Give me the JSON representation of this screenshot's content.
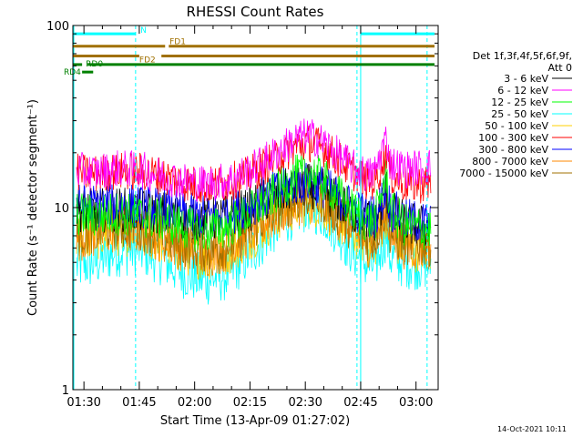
{
  "chart_data": {
    "type": "line",
    "title": "RHESSI Count Rates",
    "xlabel": "Start Time (13-Apr-09 01:27:02)",
    "ylabel": "Count Rate (s⁻¹ detector segment⁻¹)",
    "y_scale": "log",
    "ylim": [
      1,
      100
    ],
    "xlim_minutes_after_0127": [
      0,
      99
    ],
    "x_ticks": [
      {
        "label": "01:30",
        "minutes": 3
      },
      {
        "label": "01:45",
        "minutes": 18
      },
      {
        "label": "02:00",
        "minutes": 33
      },
      {
        "label": "02:15",
        "minutes": 48
      },
      {
        "label": "02:30",
        "minutes": 63
      },
      {
        "label": "02:45",
        "minutes": 78
      },
      {
        "label": "03:00",
        "minutes": 93
      }
    ],
    "y_ticks": [
      {
        "label": "1",
        "value": 1
      },
      {
        "label": "10",
        "value": 10
      },
      {
        "label": "100",
        "value": 100
      }
    ],
    "legend": {
      "title_lines": [
        "Det 1f,3f,4f,5f,6f,9f,",
        "Att 0"
      ],
      "placement": "right"
    },
    "series": [
      {
        "name": "3 - 6 keV",
        "color": "#000000",
        "points": [
          [
            1,
            9.8
          ],
          [
            6,
            9.6
          ],
          [
            12,
            9.8
          ],
          [
            18,
            9.6
          ],
          [
            24,
            9.4
          ],
          [
            30,
            8.8
          ],
          [
            36,
            8.6
          ],
          [
            42,
            8.9
          ],
          [
            48,
            9.8
          ],
          [
            54,
            11.5
          ],
          [
            60,
            13.0
          ],
          [
            64,
            13.2
          ],
          [
            68,
            12.4
          ],
          [
            72,
            10.8
          ],
          [
            76,
            9.4
          ],
          [
            80,
            8.6
          ],
          [
            82,
            8.6
          ],
          [
            84,
            10.6
          ],
          [
            85,
            12.5
          ],
          [
            86,
            9.6
          ],
          [
            90,
            8.2
          ],
          [
            94,
            7.9
          ],
          [
            97,
            7.9
          ]
        ]
      },
      {
        "name": "6 - 12 keV",
        "color": "#ff00ff",
        "points": [
          [
            1,
            16.0
          ],
          [
            6,
            15.6
          ],
          [
            12,
            16.4
          ],
          [
            18,
            16.2
          ],
          [
            24,
            15.0
          ],
          [
            30,
            14.0
          ],
          [
            36,
            13.5
          ],
          [
            42,
            14.1
          ],
          [
            48,
            15.9
          ],
          [
            54,
            19.2
          ],
          [
            60,
            23.5
          ],
          [
            64,
            24.9
          ],
          [
            68,
            22.7
          ],
          [
            72,
            19.3
          ],
          [
            76,
            16.5
          ],
          [
            80,
            15.0
          ],
          [
            82,
            15.8
          ],
          [
            84,
            21.5
          ],
          [
            85,
            23.8
          ],
          [
            86,
            17.6
          ],
          [
            90,
            16.2
          ],
          [
            94,
            16.6
          ],
          [
            97,
            16.8
          ]
        ]
      },
      {
        "name": "12 - 25 keV",
        "color": "#00ff00",
        "points": [
          [
            1,
            9.2
          ],
          [
            6,
            9.0
          ],
          [
            12,
            9.3
          ],
          [
            18,
            9.0
          ],
          [
            24,
            8.6
          ],
          [
            30,
            7.8
          ],
          [
            36,
            7.4
          ],
          [
            42,
            7.9
          ],
          [
            48,
            9.3
          ],
          [
            54,
            11.6
          ],
          [
            60,
            14.6
          ],
          [
            64,
            15.7
          ],
          [
            68,
            14.1
          ],
          [
            72,
            11.6
          ],
          [
            76,
            9.5
          ],
          [
            80,
            8.4
          ],
          [
            82,
            8.8
          ],
          [
            84,
            12.8
          ],
          [
            85,
            15.2
          ],
          [
            86,
            9.6
          ],
          [
            90,
            8.0
          ],
          [
            94,
            7.7
          ],
          [
            97,
            7.6
          ]
        ]
      },
      {
        "name": "25 - 50 keV",
        "color": "#00ffff",
        "points": [
          [
            1,
            4.8
          ],
          [
            6,
            5.0
          ],
          [
            12,
            5.8
          ],
          [
            18,
            5.9
          ],
          [
            24,
            5.2
          ],
          [
            30,
            4.4
          ],
          [
            36,
            4.0
          ],
          [
            42,
            4.3
          ],
          [
            48,
            5.6
          ],
          [
            54,
            7.6
          ],
          [
            60,
            9.5
          ],
          [
            64,
            10.3
          ],
          [
            68,
            9.3
          ],
          [
            72,
            7.4
          ],
          [
            76,
            5.7
          ],
          [
            80,
            4.8
          ],
          [
            82,
            4.8
          ],
          [
            84,
            6.4
          ],
          [
            85,
            7.2
          ],
          [
            86,
            5.4
          ],
          [
            90,
            5.0
          ],
          [
            94,
            4.9
          ],
          [
            97,
            4.9
          ]
        ]
      },
      {
        "name": "50 - 100 keV",
        "color": "#ffd000",
        "points": [
          [
            1,
            6.8
          ],
          [
            6,
            7.0
          ],
          [
            12,
            7.4
          ],
          [
            18,
            7.2
          ],
          [
            24,
            6.6
          ],
          [
            30,
            5.8
          ],
          [
            36,
            5.4
          ],
          [
            42,
            5.8
          ],
          [
            48,
            7.0
          ],
          [
            54,
            8.6
          ],
          [
            60,
            10.2
          ],
          [
            64,
            10.9
          ],
          [
            68,
            10.1
          ],
          [
            72,
            8.6
          ],
          [
            76,
            7.1
          ],
          [
            80,
            6.3
          ],
          [
            82,
            6.4
          ],
          [
            84,
            8.4
          ],
          [
            85,
            9.4
          ],
          [
            86,
            6.8
          ],
          [
            90,
            6.1
          ],
          [
            94,
            6.0
          ],
          [
            97,
            6.0
          ]
        ]
      },
      {
        "name": "100 - 300 keV",
        "color": "#ff0000",
        "points": [
          [
            1,
            15.6
          ],
          [
            6,
            15.3
          ],
          [
            12,
            15.8
          ],
          [
            18,
            15.8
          ],
          [
            24,
            15.0
          ],
          [
            30,
            13.7
          ],
          [
            36,
            13.2
          ],
          [
            42,
            13.7
          ],
          [
            48,
            15.2
          ],
          [
            54,
            18.0
          ],
          [
            60,
            21.5
          ],
          [
            64,
            22.8
          ],
          [
            68,
            21.2
          ],
          [
            72,
            18.4
          ],
          [
            76,
            15.6
          ],
          [
            80,
            13.8
          ],
          [
            82,
            14.0
          ],
          [
            84,
            17.8
          ],
          [
            85,
            20.6
          ],
          [
            86,
            15.0
          ],
          [
            90,
            13.4
          ],
          [
            94,
            13.4
          ],
          [
            97,
            13.5
          ]
        ]
      },
      {
        "name": "300 - 800 keV",
        "color": "#0000ff",
        "points": [
          [
            1,
            10.3
          ],
          [
            6,
            10.2
          ],
          [
            12,
            10.4
          ],
          [
            18,
            10.2
          ],
          [
            24,
            9.8
          ],
          [
            30,
            9.2
          ],
          [
            36,
            8.9
          ],
          [
            42,
            9.3
          ],
          [
            48,
            10.3
          ],
          [
            54,
            11.9
          ],
          [
            60,
            13.5
          ],
          [
            64,
            13.9
          ],
          [
            68,
            13.0
          ],
          [
            72,
            11.3
          ],
          [
            76,
            9.9
          ],
          [
            80,
            9.0
          ],
          [
            82,
            9.0
          ],
          [
            84,
            11.2
          ],
          [
            85,
            13.0
          ],
          [
            86,
            9.8
          ],
          [
            90,
            8.6
          ],
          [
            94,
            8.3
          ],
          [
            97,
            8.2
          ]
        ]
      },
      {
        "name": "800 - 7000 keV",
        "color": "#ff8800",
        "points": [
          [
            1,
            6.9
          ],
          [
            6,
            7.1
          ],
          [
            12,
            7.6
          ],
          [
            18,
            7.5
          ],
          [
            24,
            6.8
          ],
          [
            30,
            6.0
          ],
          [
            36,
            5.6
          ],
          [
            42,
            6.0
          ],
          [
            48,
            7.3
          ],
          [
            54,
            8.9
          ],
          [
            60,
            10.6
          ],
          [
            64,
            11.3
          ],
          [
            68,
            10.5
          ],
          [
            72,
            8.9
          ],
          [
            76,
            7.3
          ],
          [
            80,
            6.4
          ],
          [
            82,
            6.5
          ],
          [
            84,
            8.7
          ],
          [
            85,
            9.8
          ],
          [
            86,
            7.0
          ],
          [
            90,
            6.2
          ],
          [
            94,
            6.1
          ],
          [
            97,
            6.1
          ]
        ]
      },
      {
        "name": "7000 - 15000 keV",
        "color": "#a07000",
        "points": [
          [
            1,
            7.3
          ],
          [
            6,
            7.6
          ],
          [
            12,
            8.0
          ],
          [
            18,
            7.9
          ],
          [
            24,
            7.1
          ],
          [
            30,
            6.3
          ],
          [
            36,
            5.9
          ],
          [
            42,
            6.3
          ],
          [
            48,
            7.7
          ],
          [
            54,
            9.4
          ],
          [
            60,
            11.1
          ],
          [
            64,
            11.8
          ],
          [
            68,
            11.0
          ],
          [
            72,
            9.3
          ],
          [
            76,
            7.7
          ],
          [
            80,
            6.8
          ],
          [
            82,
            6.9
          ],
          [
            84,
            9.1
          ],
          [
            85,
            10.2
          ],
          [
            86,
            7.3
          ],
          [
            90,
            6.5
          ],
          [
            94,
            6.4
          ],
          [
            97,
            6.4
          ]
        ]
      }
    ],
    "annotations": [
      {
        "label": "N",
        "color": "#00ffff",
        "level": 90,
        "segments": [
          [
            0,
            17
          ],
          [
            78,
            98
          ]
        ]
      },
      {
        "label": "FD1",
        "color": "#a07000",
        "level": 77,
        "segments": [
          [
            0,
            25
          ],
          [
            26,
            98
          ]
        ]
      },
      {
        "label": "FD2",
        "color": "#a07000",
        "level": 68,
        "segments": [
          [
            0,
            18
          ],
          [
            24,
            98
          ]
        ]
      },
      {
        "label": "RD0",
        "color": "#008000",
        "level": 61,
        "segments": [
          [
            0,
            2.5
          ],
          [
            4,
            98
          ]
        ]
      },
      {
        "label": "RD4",
        "color": "#008000",
        "level": 55.5,
        "segments": [
          [
            2.5,
            5.5
          ]
        ]
      }
    ],
    "solid_vlines_minutes": [
      78
    ],
    "dashed_vlines_minutes": [
      17,
      77,
      96
    ],
    "grid": false
  },
  "footer_timestamp": "14-Oct-2021 10:11"
}
